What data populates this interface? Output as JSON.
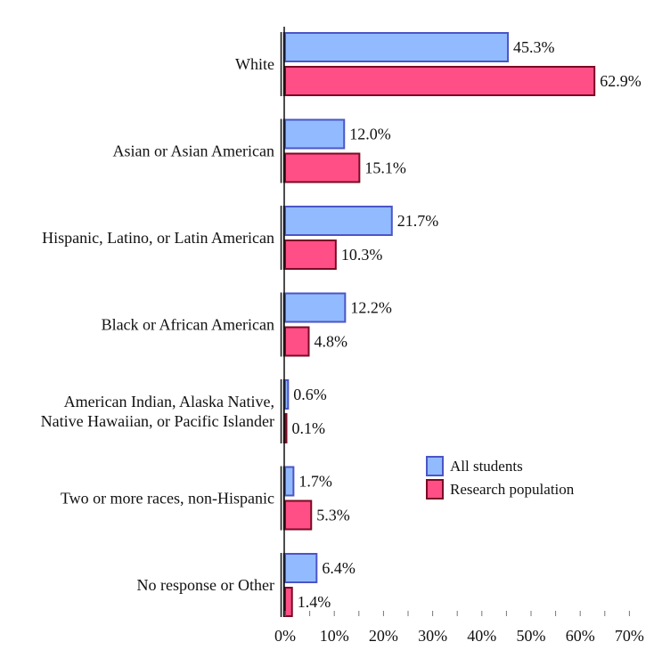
{
  "chart_data": {
    "type": "bar",
    "orientation": "horizontal",
    "categories": [
      [
        "White"
      ],
      [
        "Asian or Asian American"
      ],
      [
        "Hispanic, Latino, or Latin American"
      ],
      [
        "Black or African American"
      ],
      [
        "American Indian, Alaska Native,",
        "Native Hawaiian, or Pacific Islander"
      ],
      [
        "Two or more races, non-Hispanic"
      ],
      [
        "No response or Other"
      ]
    ],
    "series": [
      {
        "name": "All students",
        "values": [
          45.3,
          12.0,
          21.7,
          12.2,
          0.6,
          1.7,
          6.4
        ],
        "labels": [
          "45.3%",
          "12.0%",
          "21.7%",
          "12.2%",
          "0.6%",
          "1.7%",
          "6.4%"
        ],
        "fill": "#92bbff",
        "stroke": "#4b55c7"
      },
      {
        "name": "Research population",
        "values": [
          62.9,
          15.1,
          10.3,
          4.8,
          0.1,
          5.3,
          1.4
        ],
        "labels": [
          "62.9%",
          "15.1%",
          "10.3%",
          "4.8%",
          "0.1%",
          "5.3%",
          "1.4%"
        ],
        "fill": "#ff4f86",
        "stroke": "#7a0a24"
      }
    ],
    "x_ticks": [
      "0%",
      "10%",
      "20%",
      "30%",
      "40%",
      "50%",
      "60%",
      "70%"
    ],
    "xlim": [
      0,
      70
    ],
    "grid": false,
    "legend_position": "right-middle"
  }
}
